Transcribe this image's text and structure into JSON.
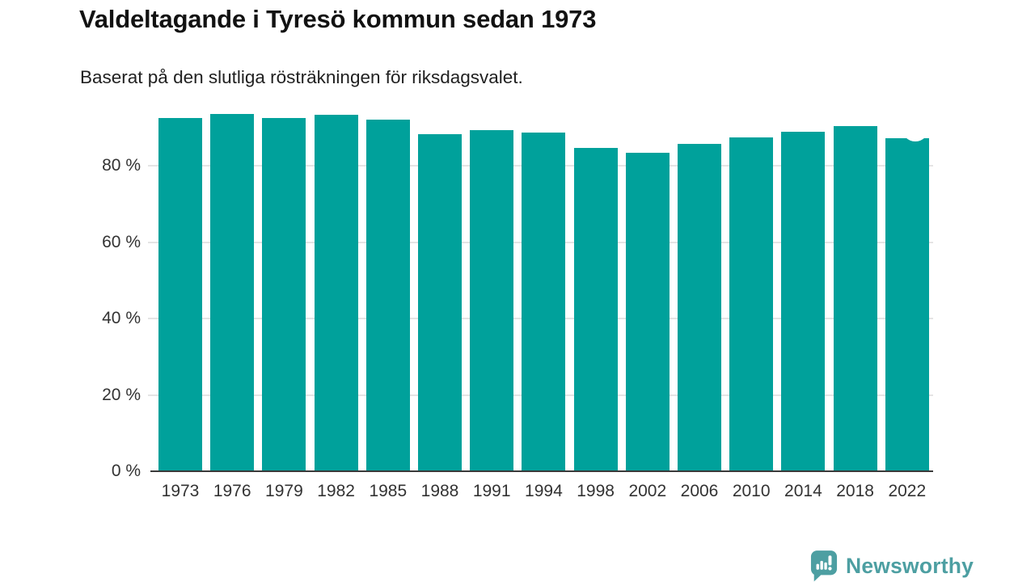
{
  "header": {
    "title": "Valdeltagande i Tyresö kommun sedan 1973",
    "subtitle": "Baserat på den slutliga rösträkningen för riksdagsvalet."
  },
  "chart_data": {
    "type": "bar",
    "categories": [
      "1973",
      "1976",
      "1979",
      "1982",
      "1985",
      "1988",
      "1991",
      "1994",
      "1998",
      "2002",
      "2006",
      "2010",
      "2014",
      "2018",
      "2022"
    ],
    "values": [
      92.2,
      93.4,
      92.2,
      93.1,
      91.9,
      88.1,
      89.0,
      88.5,
      84.4,
      83.1,
      85.5,
      87.1,
      88.7,
      90.2,
      86.9
    ],
    "unit": "%",
    "title": "Valdeltagande i Tyresö kommun sedan 1973",
    "subtitle": "Baserat på den slutliga rösträkningen för riksdagsvalet.",
    "xlabel": "",
    "ylabel": "",
    "ylim": [
      0,
      100
    ],
    "yticks": [
      0,
      20,
      40,
      60,
      80
    ],
    "ytick_labels": [
      "0 %",
      "20 %",
      "40 %",
      "60 %",
      "80 %"
    ],
    "grid": true,
    "legend": "none",
    "bar_color": "#00a19b",
    "gridline_color": "#e4e4e4",
    "axis_color": "#3a3a3a",
    "latest_bar_marker": {
      "category": "2022",
      "style": "white-dot-notch"
    }
  },
  "footer": {
    "brand": "Newsworthy",
    "brand_color": "#4d9fa2",
    "logo_icon": "newsworthy-speech-bubble-chart-icon"
  }
}
